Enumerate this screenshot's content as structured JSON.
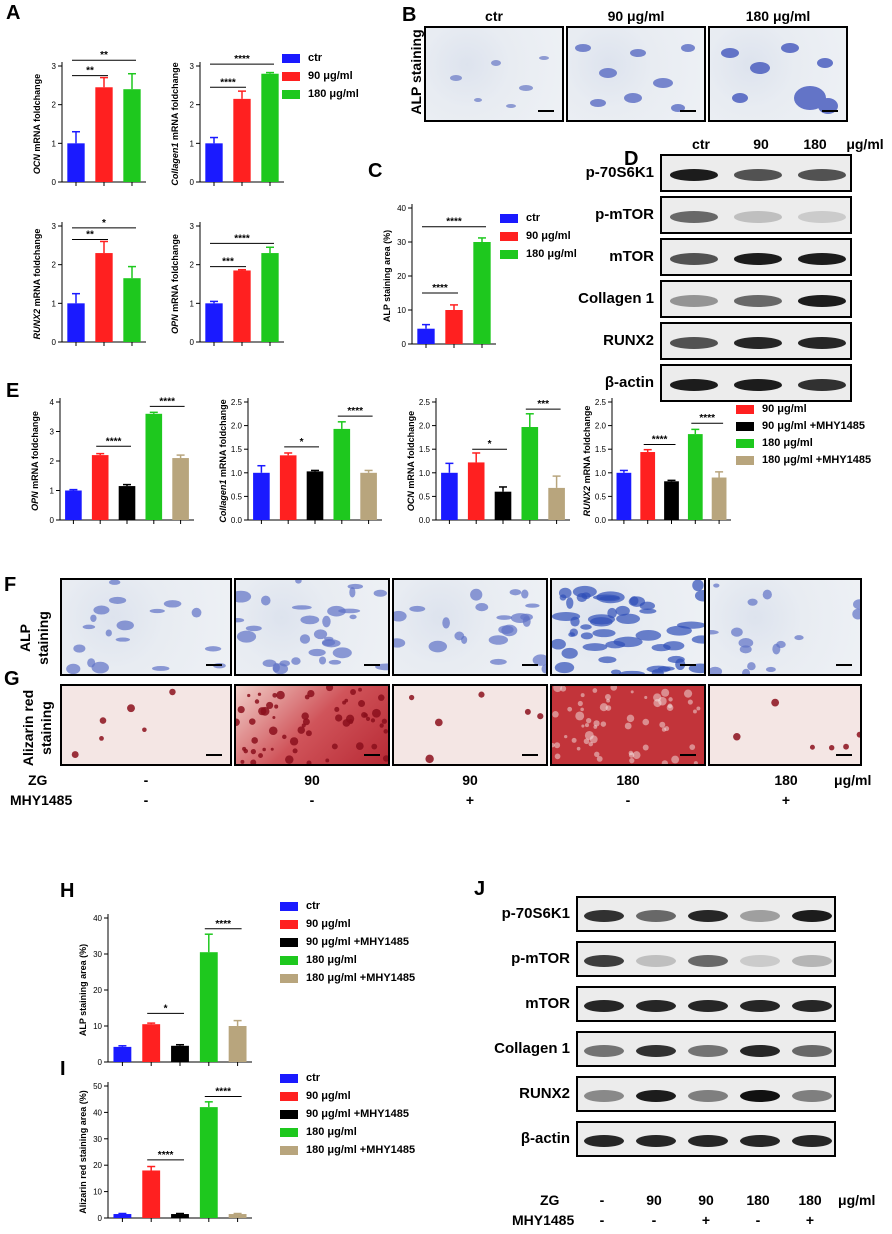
{
  "colors": {
    "ctr": "#1a1aff",
    "g90": "#ff2020",
    "mhy90": "#000000",
    "g180": "#1ec81e",
    "mhy180": "#b8a57d"
  },
  "panels": {
    "A": "A",
    "B": "B",
    "C": "C",
    "D": "D",
    "E": "E",
    "F": "F",
    "G": "G",
    "H": "H",
    "I": "I",
    "J": "J"
  },
  "legend_three": [
    "ctr",
    "90  μg/ml",
    "180 μg/ml"
  ],
  "legend_five": [
    "ctr",
    "90  μg/ml",
    "90  μg/ml +MHY1485",
    "180 μg/ml",
    "180 μg/ml +MHY1485"
  ],
  "panel_b": {
    "side_label": "ALP staining",
    "columns": [
      "ctr",
      "90 μg/ml",
      "180 μg/ml"
    ]
  },
  "panel_d": {
    "header": [
      "ctr",
      "90",
      "180",
      "μg/ml"
    ],
    "rows": [
      "p-70S6K1",
      "p-mTOR",
      "mTOR",
      "Collagen 1",
      "RUNX2",
      "β-actin"
    ]
  },
  "panel_fg": {
    "f_label": "ALP\nstaining",
    "f_label1": "ALP",
    "f_label2": "staining",
    "g_label1": "Alizarin red",
    "g_label2": "staining",
    "zg_label": "ZG",
    "mhy_label": "MHY1485",
    "zg_values": [
      "-",
      "90",
      "90",
      "180",
      "180"
    ],
    "mhy_values": [
      "-",
      "-",
      "+",
      "-",
      "+"
    ],
    "unit": "μg/ml"
  },
  "panel_j": {
    "rows": [
      "p-70S6K1",
      "p-mTOR",
      "mTOR",
      "Collagen 1",
      "RUNX2",
      "β-actin"
    ],
    "zg_label": "ZG",
    "mhy_label": "MHY1485",
    "zg_values": [
      "-",
      "90",
      "90",
      "180",
      "180"
    ],
    "mhy_values": [
      "-",
      "-",
      "+",
      "-",
      "+"
    ],
    "unit": "μg/ml"
  },
  "chart_data": [
    {
      "id": "A1",
      "type": "bar",
      "ylabel_italic": "OCN",
      "ylabel": "mRNA foldchange",
      "ylim": [
        0,
        3
      ],
      "yticks": [
        0,
        1,
        2,
        3
      ],
      "categories": [
        "ctr",
        "90 μg/ml",
        "180 μg/ml"
      ],
      "values": [
        1.0,
        2.45,
        2.4
      ],
      "errors": [
        0.3,
        0.25,
        0.4
      ],
      "sig": [
        {
          "from": 0,
          "to": 1,
          "label": "**",
          "level": 2.75
        },
        {
          "from": 0,
          "to": 2,
          "label": "**",
          "level": 3.15
        }
      ]
    },
    {
      "id": "A2",
      "type": "bar",
      "ylabel_italic": "Collagen1",
      "ylabel": "mRNA foldchange",
      "ylim": [
        0,
        3
      ],
      "yticks": [
        0,
        1,
        2,
        3
      ],
      "categories": [
        "ctr",
        "90 μg/ml",
        "180 μg/ml"
      ],
      "values": [
        1.0,
        2.15,
        2.8
      ],
      "errors": [
        0.15,
        0.2,
        0.03
      ],
      "sig": [
        {
          "from": 0,
          "to": 1,
          "label": "****",
          "level": 2.45
        },
        {
          "from": 0,
          "to": 2,
          "label": "****",
          "level": 3.05
        }
      ]
    },
    {
      "id": "A3",
      "type": "bar",
      "ylabel_italic": "RUNX2",
      "ylabel": "mRNA foldchange",
      "ylim": [
        0,
        3
      ],
      "yticks": [
        0,
        1,
        2,
        3
      ],
      "categories": [
        "ctr",
        "90 μg/ml",
        "180 μg/ml"
      ],
      "values": [
        1.0,
        2.3,
        1.65
      ],
      "errors": [
        0.25,
        0.3,
        0.3
      ],
      "sig": [
        {
          "from": 0,
          "to": 1,
          "label": "**",
          "level": 2.65
        },
        {
          "from": 0,
          "to": 2,
          "label": "*",
          "level": 2.95
        }
      ]
    },
    {
      "id": "A4",
      "type": "bar",
      "ylabel_italic": "OPN",
      "ylabel": "mRNA foldchange",
      "ylim": [
        0,
        3
      ],
      "yticks": [
        0,
        1,
        2,
        3
      ],
      "categories": [
        "ctr",
        "90 μg/ml",
        "180 μg/ml"
      ],
      "values": [
        1.0,
        1.85,
        2.3
      ],
      "errors": [
        0.05,
        0.02,
        0.15
      ],
      "sig": [
        {
          "from": 0,
          "to": 1,
          "label": "***",
          "level": 1.95
        },
        {
          "from": 0,
          "to": 2,
          "label": "****",
          "level": 2.55
        }
      ]
    },
    {
      "id": "C",
      "type": "bar",
      "ylabel": "ALP staining area (%)",
      "ylim": [
        0,
        40
      ],
      "yticks": [
        0,
        10,
        20,
        30,
        40
      ],
      "categories": [
        "ctr",
        "90 μg/ml",
        "180 μg/ml"
      ],
      "values": [
        4.5,
        10,
        30
      ],
      "errors": [
        1.2,
        1.5,
        1.2
      ],
      "sig": [
        {
          "from": 0,
          "to": 1,
          "label": "****",
          "level": 15
        },
        {
          "from": 0,
          "to": 2,
          "label": "****",
          "level": 34.5
        }
      ]
    },
    {
      "id": "E1",
      "type": "bar",
      "ylabel_italic": "OPN",
      "ylabel": "mRNA foldchange",
      "ylim": [
        0,
        4
      ],
      "yticks": [
        0,
        1,
        2,
        3,
        4
      ],
      "categories": [
        "ctr",
        "90 μg/ml",
        "90 μg/ml +MHY1485",
        "180 μg/ml",
        "180 μg/ml +MHY1485"
      ],
      "values": [
        1.0,
        2.2,
        1.15,
        3.6,
        2.1
      ],
      "errors": [
        0.03,
        0.05,
        0.05,
        0.05,
        0.1
      ],
      "sig": [
        {
          "from": 1,
          "to": 2,
          "label": "****",
          "level": 2.5
        },
        {
          "from": 3,
          "to": 4,
          "label": "****",
          "level": 3.85
        }
      ]
    },
    {
      "id": "E2",
      "type": "bar",
      "ylabel_italic": "Collagen1",
      "ylabel": "mRNA foldchange",
      "ylim": [
        0,
        2.5
      ],
      "yticks": [
        0.0,
        0.5,
        1.0,
        1.5,
        2.0,
        2.5
      ],
      "categories": [
        "ctr",
        "90 μg/ml",
        "90 μg/ml +MHY1485",
        "180 μg/ml",
        "180 μg/ml +MHY1485"
      ],
      "values": [
        1.0,
        1.37,
        1.03,
        1.93,
        1.0
      ],
      "errors": [
        0.15,
        0.05,
        0.02,
        0.15,
        0.05
      ],
      "sig": [
        {
          "from": 1,
          "to": 2,
          "label": "*",
          "level": 1.55
        },
        {
          "from": 3,
          "to": 4,
          "label": "****",
          "level": 2.2
        }
      ]
    },
    {
      "id": "E3",
      "type": "bar",
      "ylabel_italic": "OCN",
      "ylabel": "mRNA foldchange",
      "ylim": [
        0,
        2.5
      ],
      "yticks": [
        0.0,
        0.5,
        1.0,
        1.5,
        2.0,
        2.5
      ],
      "categories": [
        "ctr",
        "90 μg/ml",
        "90 μg/ml +MHY1485",
        "180 μg/ml",
        "180 μg/ml +MHY1485"
      ],
      "values": [
        1.0,
        1.22,
        0.6,
        1.97,
        0.68
      ],
      "errors": [
        0.2,
        0.2,
        0.1,
        0.28,
        0.25
      ],
      "sig": [
        {
          "from": 1,
          "to": 2,
          "label": "*",
          "level": 1.5
        },
        {
          "from": 3,
          "to": 4,
          "label": "***",
          "level": 2.35
        }
      ]
    },
    {
      "id": "E4",
      "type": "bar",
      "ylabel_italic": "RUNX2",
      "ylabel": "mRNA foldchange",
      "ylim": [
        0,
        2.5
      ],
      "yticks": [
        0.0,
        0.5,
        1.0,
        1.5,
        2.0,
        2.5
      ],
      "categories": [
        "ctr",
        "90 μg/ml",
        "90 μg/ml +MHY1485",
        "180 μg/ml",
        "180 μg/ml +MHY1485"
      ],
      "values": [
        1.0,
        1.44,
        0.82,
        1.82,
        0.9
      ],
      "errors": [
        0.05,
        0.05,
        0.02,
        0.1,
        0.12
      ],
      "sig": [
        {
          "from": 1,
          "to": 2,
          "label": "****",
          "level": 1.6
        },
        {
          "from": 3,
          "to": 4,
          "label": "****",
          "level": 2.05
        }
      ]
    },
    {
      "id": "H",
      "type": "bar",
      "ylabel": "ALP staining area (%)",
      "ylim": [
        0,
        40
      ],
      "yticks": [
        0,
        10,
        20,
        30,
        40
      ],
      "categories": [
        "ctr",
        "90 μg/ml",
        "90 μg/ml +MHY1485",
        "180 μg/ml",
        "180 μg/ml +MHY1485"
      ],
      "values": [
        4.2,
        10.5,
        4.5,
        30.5,
        10
      ],
      "errors": [
        0.3,
        0.3,
        0.3,
        5,
        1.5
      ],
      "sig": [
        {
          "from": 1,
          "to": 2,
          "label": "*",
          "level": 13.5
        },
        {
          "from": 3,
          "to": 4,
          "label": "****",
          "level": 37
        }
      ]
    },
    {
      "id": "I",
      "type": "bar",
      "ylabel": "Alizarin red staining area (%)",
      "ylim": [
        0,
        50
      ],
      "yticks": [
        0,
        10,
        20,
        30,
        40,
        50
      ],
      "categories": [
        "ctr",
        "90 μg/ml",
        "90 μg/ml +MHY1485",
        "180 μg/ml",
        "180 μg/ml +MHY1485"
      ],
      "values": [
        1.5,
        18,
        1.5,
        42,
        1.5
      ],
      "errors": [
        0.2,
        1.5,
        0.2,
        2,
        0.2
      ],
      "sig": [
        {
          "from": 1,
          "to": 2,
          "label": "****",
          "level": 22
        },
        {
          "from": 3,
          "to": 4,
          "label": "****",
          "level": 46
        }
      ]
    }
  ]
}
